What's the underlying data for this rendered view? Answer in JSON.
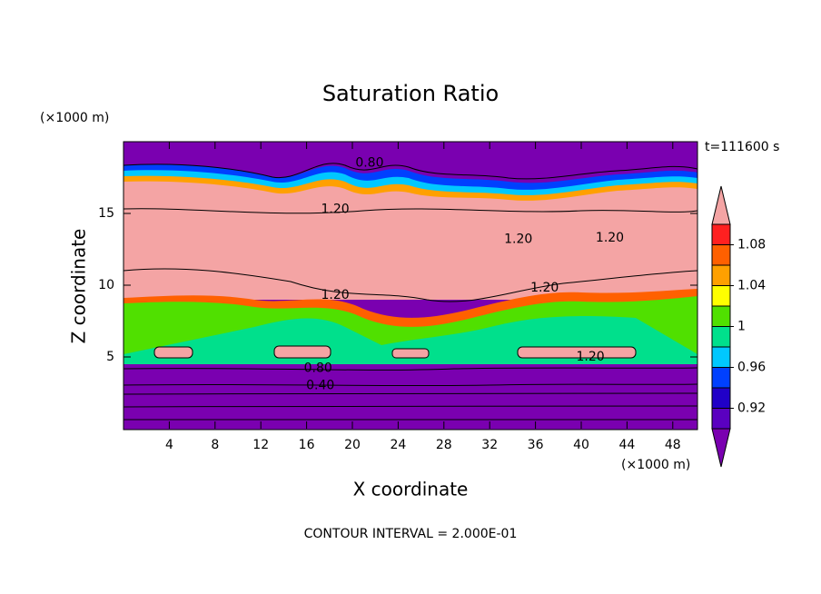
{
  "chart_data": {
    "type": "contour",
    "title": "Saturation Ratio",
    "xlabel": "X coordinate",
    "ylabel": "Z coordinate",
    "xunit": "(×1000 m)",
    "yunit": "(×1000 m)",
    "time_label": "t=111600 s",
    "footer": "CONTOUR INTERVAL = 2.000E-01",
    "xlim": [
      0,
      50
    ],
    "xticks": [
      4,
      8,
      12,
      16,
      20,
      24,
      28,
      32,
      36,
      40,
      44,
      48
    ],
    "ylim": [
      0,
      20
    ],
    "yticks": [
      5,
      10,
      15
    ],
    "contour_labels": [
      {
        "value": 0.8,
        "label": "0.80",
        "x": 21.5,
        "z": 18.5
      },
      {
        "value": 1.2,
        "label": "1.20",
        "x": 18.5,
        "z": 15.3
      },
      {
        "value": 1.2,
        "label": "1.20",
        "x": 34.5,
        "z": 13.2
      },
      {
        "value": 1.2,
        "label": "1.20",
        "x": 42.5,
        "z": 13.3
      },
      {
        "value": 1.2,
        "label": "1.20",
        "x": 18.5,
        "z": 9.3
      },
      {
        "value": 1.2,
        "label": "1.20",
        "x": 36.8,
        "z": 9.8
      },
      {
        "value": 1.2,
        "label": "1.20",
        "x": 40.8,
        "z": 5.0
      },
      {
        "value": 0.8,
        "label": "0.80",
        "x": 17.0,
        "z": 4.2
      },
      {
        "value": 0.4,
        "label": "0.40",
        "x": 17.2,
        "z": 3.0
      }
    ],
    "colorbar": {
      "levels": [
        0.9,
        0.92,
        0.94,
        0.96,
        0.98,
        1,
        1.02,
        1.04,
        1.06,
        1.08,
        1.1
      ],
      "colors": [
        "#7a00b0",
        "#5a00c0",
        "#2000c8",
        "#0040ff",
        "#00c8ff",
        "#00e08c",
        "#50e000",
        "#ffff00",
        "#ffa000",
        "#ff6000",
        "#ff2020",
        "#f4a4a4"
      ],
      "ticks": [
        0.92,
        0.96,
        1,
        1.04,
        1.08
      ]
    }
  }
}
